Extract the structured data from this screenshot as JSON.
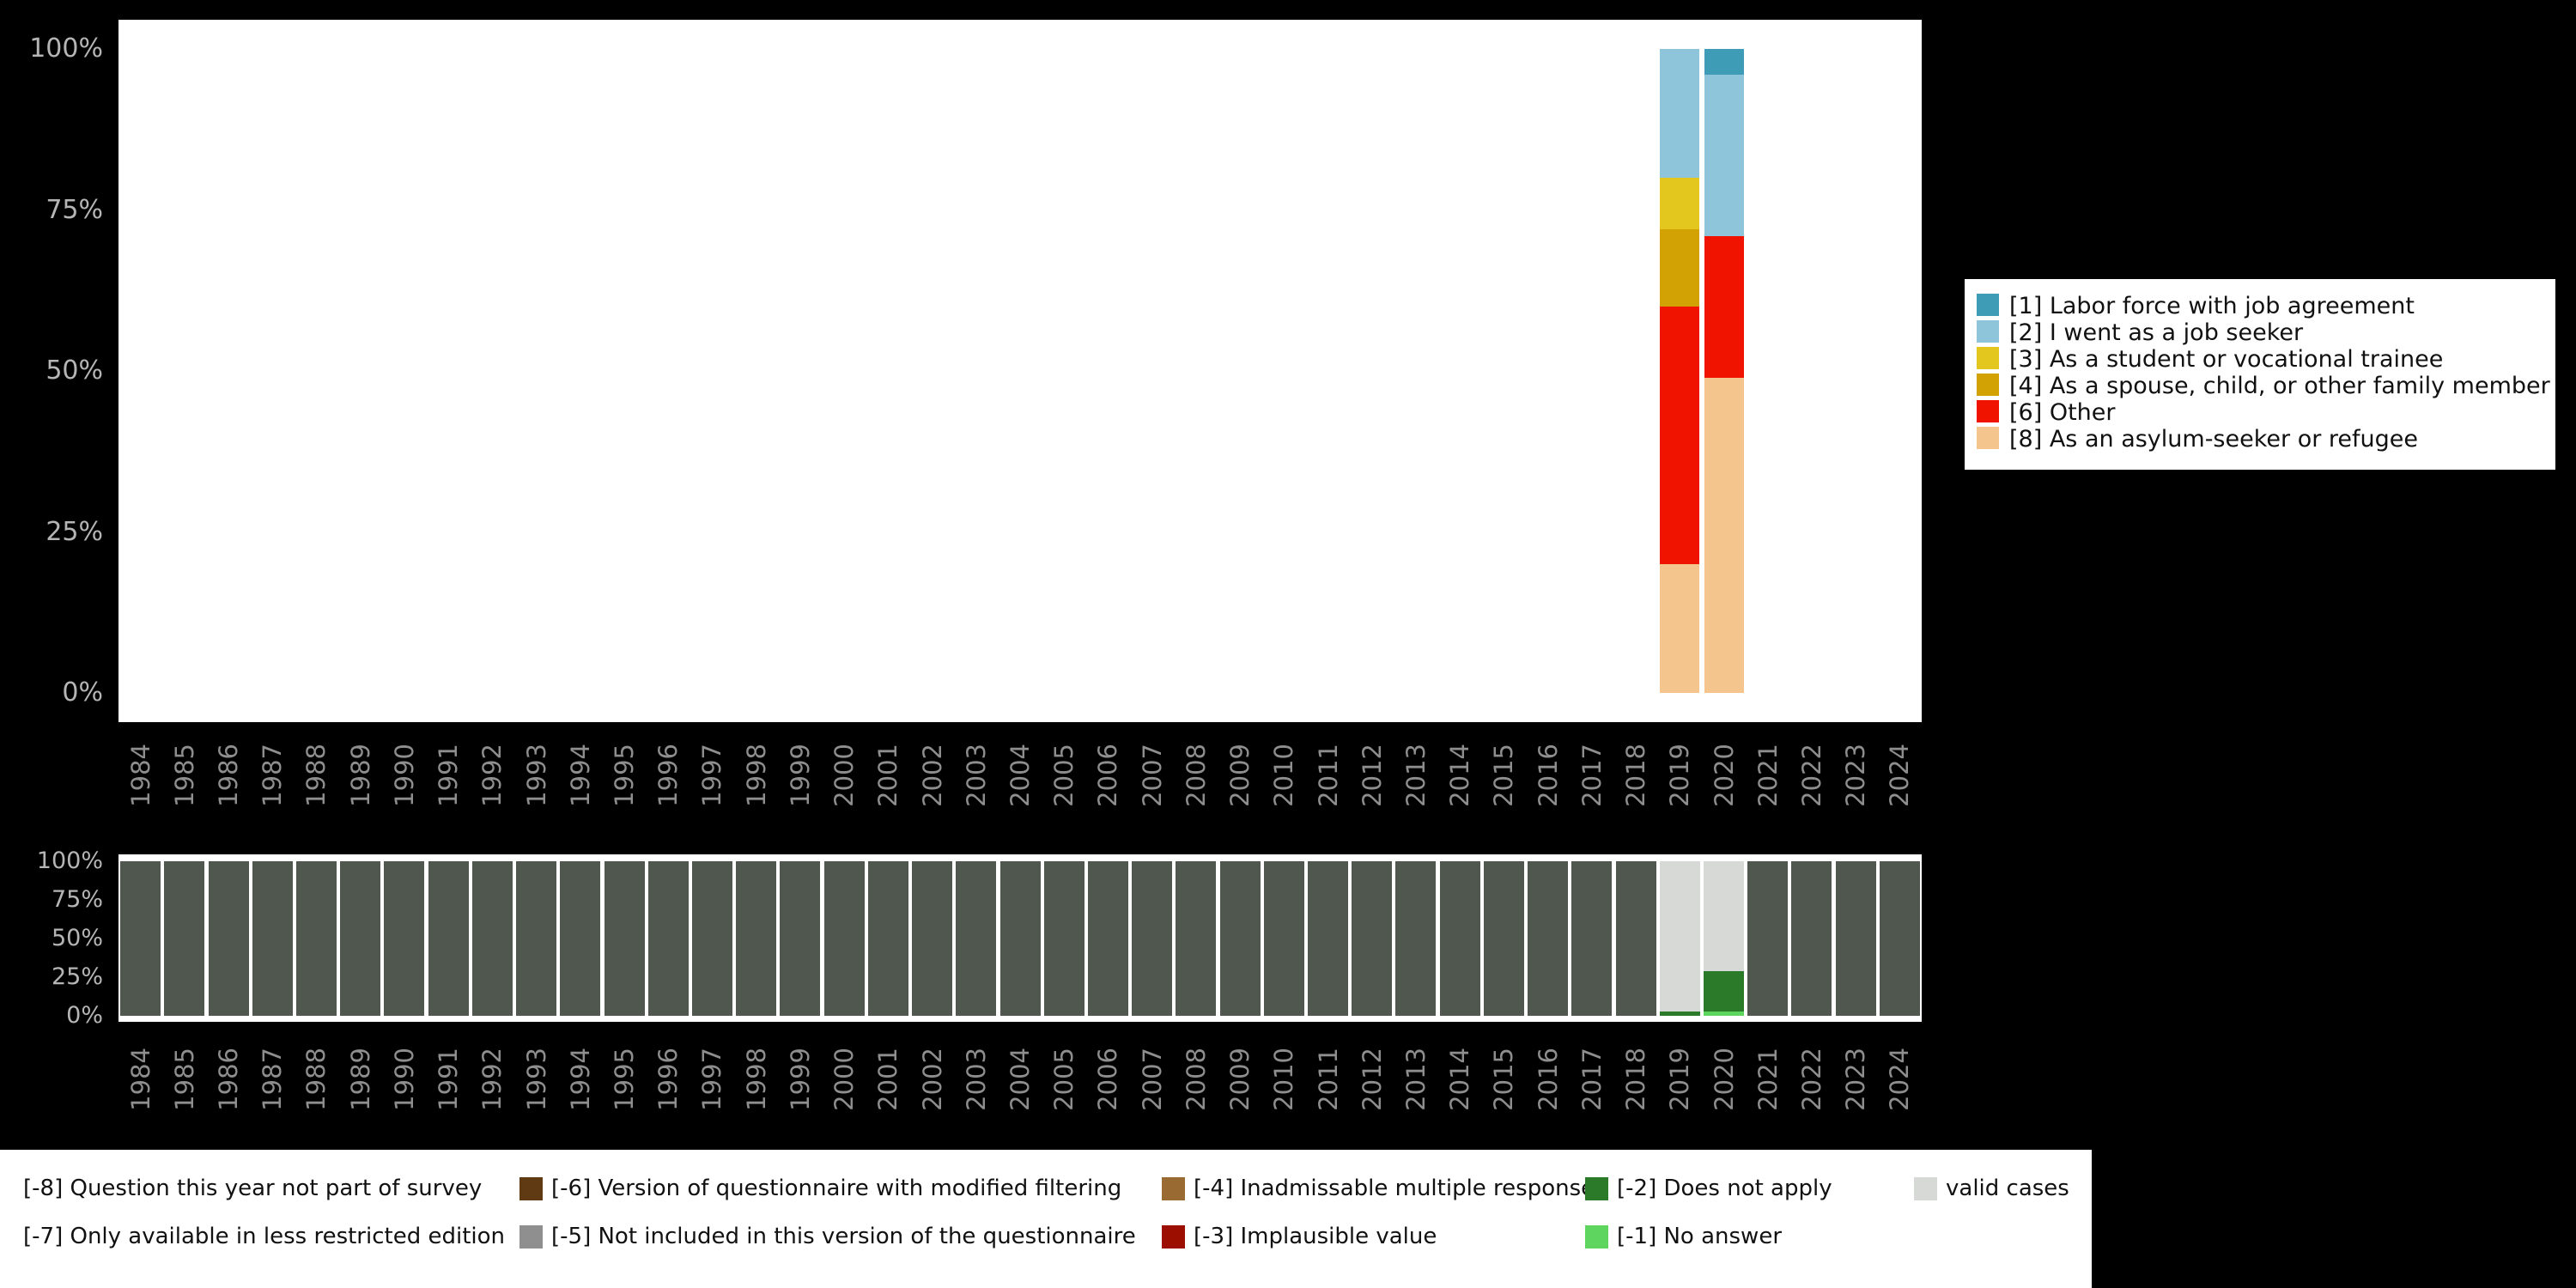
{
  "page": {
    "background": "#000000"
  },
  "chart_data": [
    {
      "id": "answers",
      "type": "bar",
      "title": "",
      "xlabel": "",
      "ylabel": "",
      "ylim": [
        0,
        100
      ],
      "y_ticks": [
        "0%",
        "25%",
        "50%",
        "75%",
        "100%"
      ],
      "grid": false,
      "legend_position": "right",
      "categories": [
        "1984",
        "1985",
        "1986",
        "1987",
        "1988",
        "1989",
        "1990",
        "1991",
        "1992",
        "1993",
        "1994",
        "1995",
        "1996",
        "1997",
        "1998",
        "1999",
        "2000",
        "2001",
        "2002",
        "2003",
        "2004",
        "2005",
        "2006",
        "2007",
        "2008",
        "2009",
        "2010",
        "2011",
        "2012",
        "2013",
        "2014",
        "2015",
        "2016",
        "2017",
        "2018",
        "2019",
        "2020",
        "2021",
        "2022",
        "2023",
        "2024"
      ],
      "series": [
        {
          "name": "[1] Labor force with job agreement",
          "color": "#3e9cb7",
          "values": {
            "2019": 0,
            "2020": 4
          }
        },
        {
          "name": "[2] I went as a job seeker",
          "color": "#8fc5da",
          "values": {
            "2019": 20,
            "2020": 25
          }
        },
        {
          "name": "[3] As a student or vocational trainee",
          "color": "#e3c71f",
          "values": {
            "2019": 8,
            "2020": 0
          }
        },
        {
          "name": "[4] As a spouse, child, or other family member",
          "color": "#d2a204",
          "values": {
            "2019": 12,
            "2020": 0
          }
        },
        {
          "name": "[6] Other",
          "color": "#ef1300",
          "values": {
            "2019": 40,
            "2020": 22
          }
        },
        {
          "name": "[8] As an asylum-seeker or refugee",
          "color": "#f5c58e",
          "values": {
            "2019": 20,
            "2020": 49
          }
        }
      ],
      "stack_order_bottom_to_top": [
        "[8] As an asylum-seeker or refugee",
        "[6] Other",
        "[4] As a spouse, child, or other family member",
        "[3] As a student or vocational trainee",
        "[2] I went as a job seeker",
        "[1] Labor force with job agreement"
      ]
    },
    {
      "id": "missings",
      "type": "bar",
      "title": "",
      "xlabel": "",
      "ylabel": "",
      "ylim": [
        0,
        100
      ],
      "y_ticks": [
        "0%",
        "25%",
        "50%",
        "75%",
        "100%"
      ],
      "grid": false,
      "categories": [
        "1984",
        "1985",
        "1986",
        "1987",
        "1988",
        "1989",
        "1990",
        "1991",
        "1992",
        "1993",
        "1994",
        "1995",
        "1996",
        "1997",
        "1998",
        "1999",
        "2000",
        "2001",
        "2002",
        "2003",
        "2004",
        "2005",
        "2006",
        "2007",
        "2008",
        "2009",
        "2010",
        "2011",
        "2012",
        "2013",
        "2014",
        "2015",
        "2016",
        "2017",
        "2018",
        "2019",
        "2020",
        "2021",
        "2022",
        "2023",
        "2024"
      ],
      "default_segment": {
        "name": "missing (question not asked this year)",
        "color": "#4f574f",
        "value": 100
      },
      "year_segments_bottom_to_top": {
        "2019": [
          {
            "name": "[-2] Does not apply",
            "color": "#2a7a2a",
            "value": 3
          },
          {
            "name": "valid cases",
            "color": "#d6d9d6",
            "value": 97
          }
        ],
        "2020": [
          {
            "name": "[-1] No answer",
            "color": "#5ed55e",
            "value": 3
          },
          {
            "name": "[-2] Does not apply",
            "color": "#2a7a2a",
            "value": 26
          },
          {
            "name": "valid cases",
            "color": "#d6d9d6",
            "value": 71
          }
        ]
      }
    }
  ],
  "missings_legend": {
    "rows": [
      [
        {
          "label": "[-8] Question this year not part of survey",
          "color": null
        },
        {
          "label": "[-6] Version of questionnaire with modified filtering",
          "color": "#5f3a12"
        },
        {
          "label": "[-4] Inadmissable multiple response",
          "color": "#9a6a33"
        },
        {
          "label": "[-2] Does not apply",
          "color": "#2a7a2a"
        },
        {
          "label": "valid cases",
          "color": "#d6d9d6"
        }
      ],
      [
        {
          "label": "[-7] Only available in less restricted edition",
          "color": null
        },
        {
          "label": "[-5] Not included in this version of the questionnaire",
          "color": "#8f8f8f"
        },
        {
          "label": "[-3] Implausible value",
          "color": "#9b0e00"
        },
        {
          "label": "[-1] No answer",
          "color": "#5ed55e"
        }
      ]
    ]
  }
}
